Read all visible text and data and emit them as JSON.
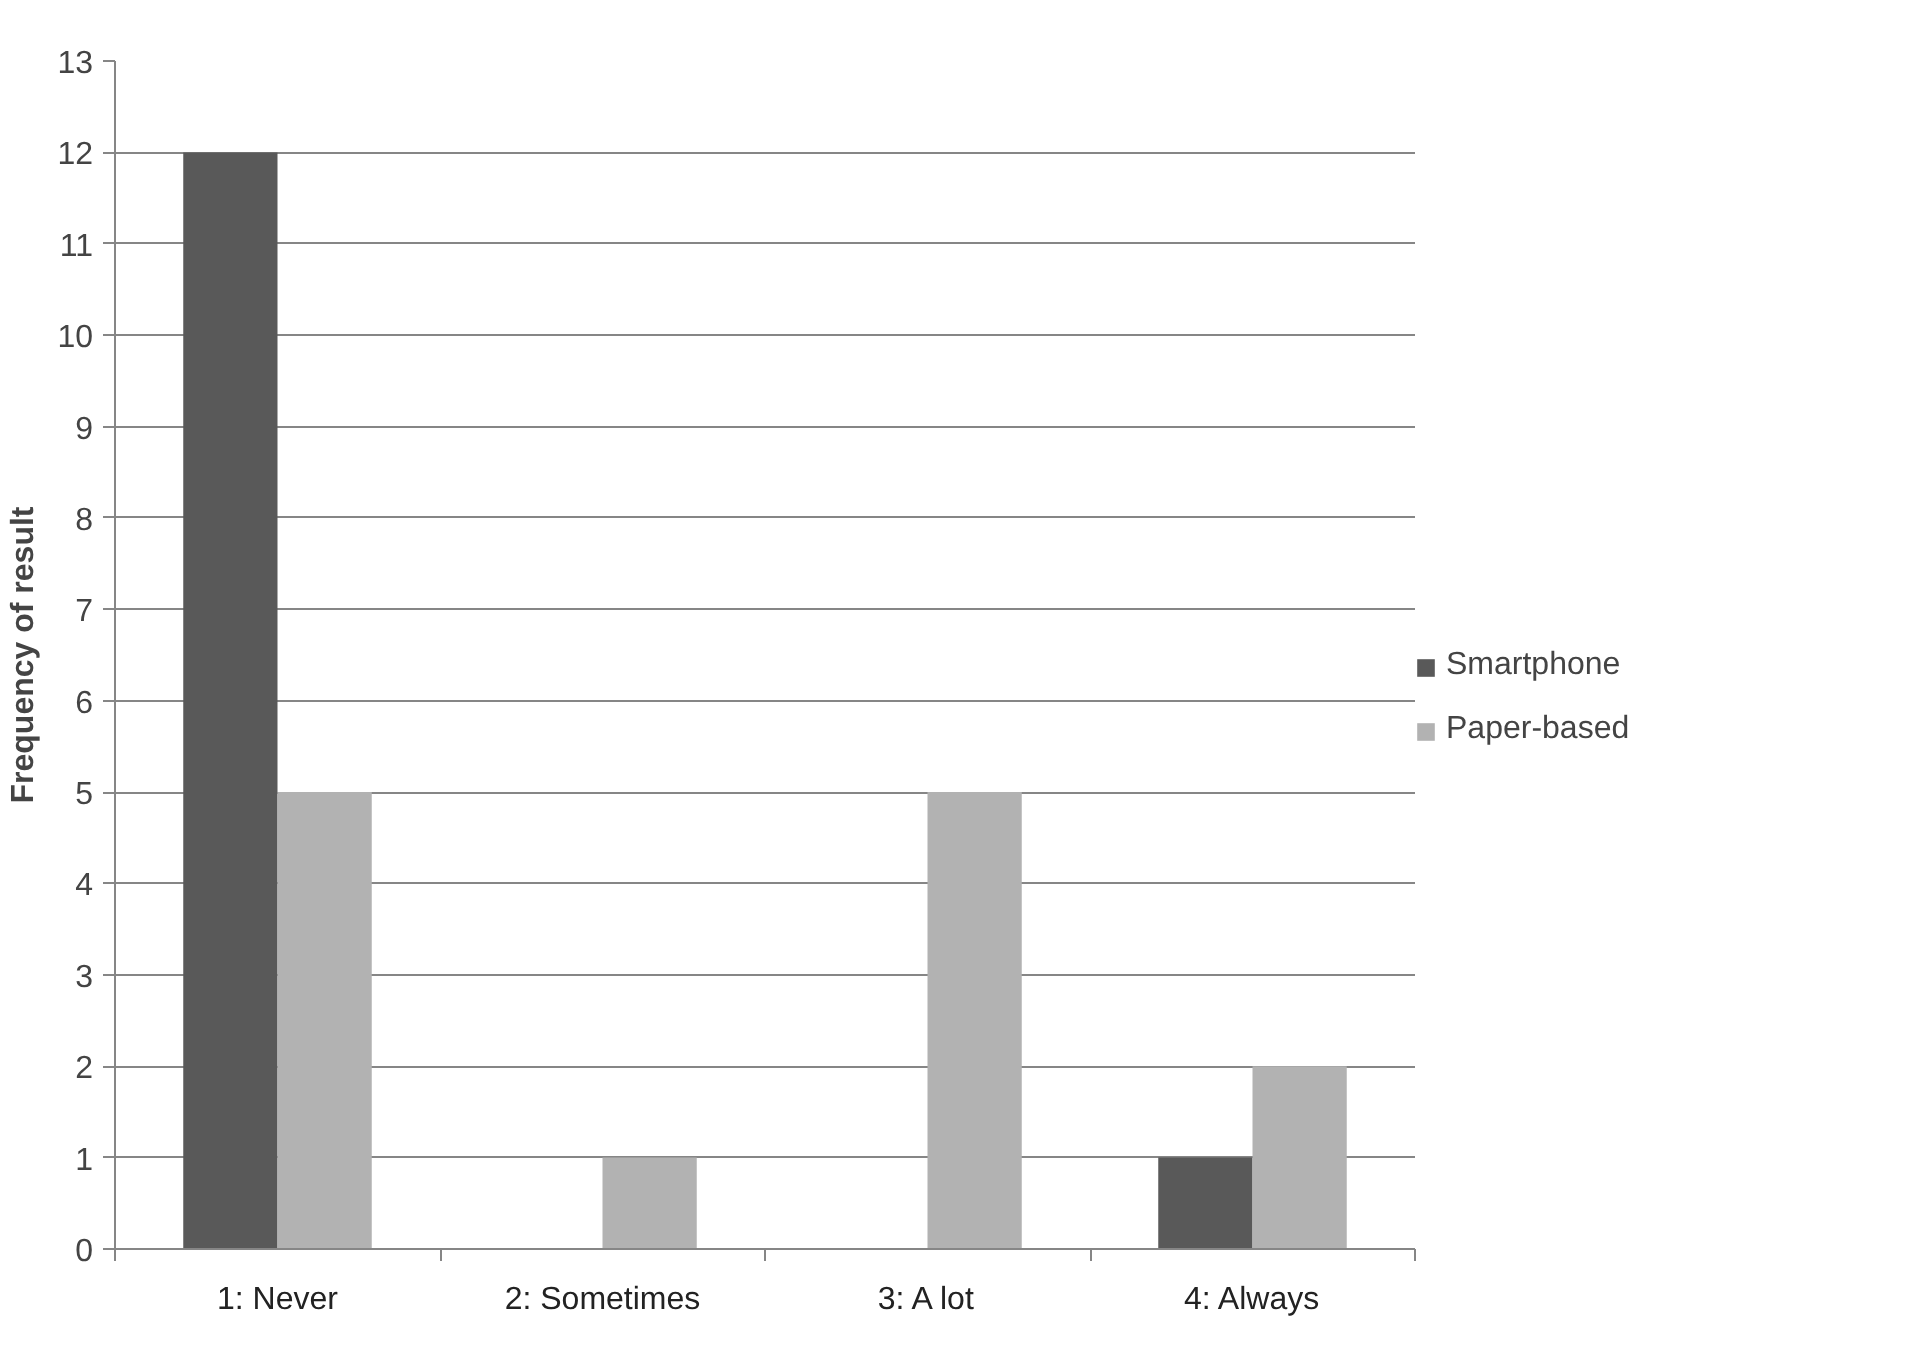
{
  "chart_data": {
    "type": "bar",
    "ylabel": "Frequency of result",
    "categories": [
      "1: Never",
      "2: Sometimes",
      "3: A lot",
      "4: Always"
    ],
    "series": [
      {
        "name": "Smartphone",
        "color": "#595959",
        "values": [
          12,
          0,
          0,
          1
        ]
      },
      {
        "name": "Paper-based",
        "color": "#b2b2b2",
        "values": [
          5,
          1,
          5,
          2
        ]
      }
    ],
    "ylim": [
      0,
      13
    ],
    "yticks": [
      0,
      1,
      2,
      3,
      4,
      5,
      6,
      7,
      8,
      9,
      10,
      11,
      12,
      13
    ],
    "grid": "y",
    "legend": "right"
  }
}
